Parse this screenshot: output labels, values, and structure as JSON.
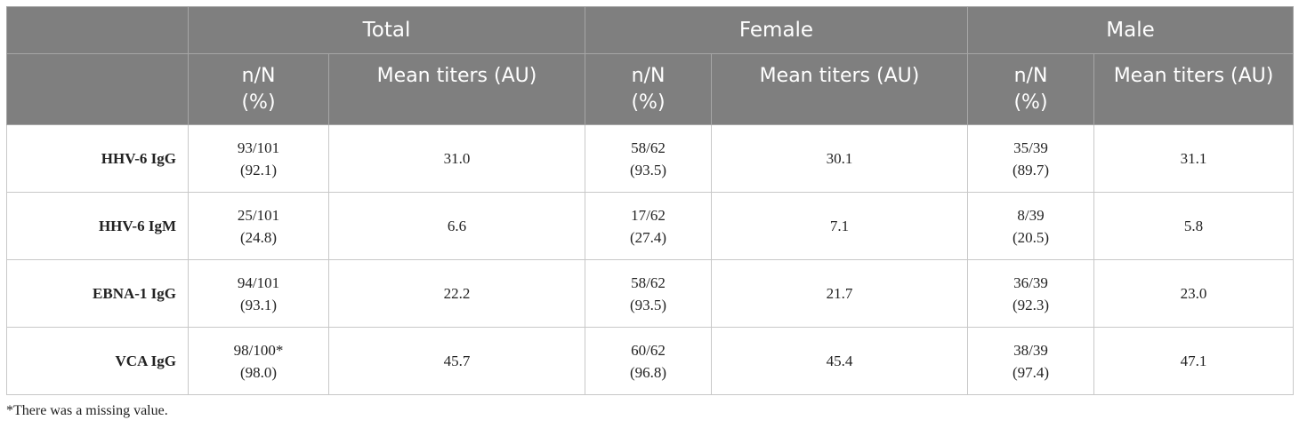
{
  "table": {
    "groups": [
      "Total",
      "Female",
      "Male"
    ],
    "subheaders": {
      "count_line1": "n/N",
      "count_line2": "(%)",
      "mean": "Mean titers (AU)"
    },
    "rows": [
      {
        "label": "HHV-6 IgG",
        "total": {
          "count": "93/101",
          "pct": "(92.1)",
          "mean": "31.0"
        },
        "female": {
          "count": "58/62",
          "pct": "(93.5)",
          "mean": "30.1"
        },
        "male": {
          "count": "35/39",
          "pct": "(89.7)",
          "mean": "31.1"
        }
      },
      {
        "label": "HHV-6 IgM",
        "total": {
          "count": "25/101",
          "pct": "(24.8)",
          "mean": "6.6"
        },
        "female": {
          "count": "17/62",
          "pct": "(27.4)",
          "mean": "7.1"
        },
        "male": {
          "count": "8/39",
          "pct": "(20.5)",
          "mean": "5.8"
        }
      },
      {
        "label": "EBNA-1 IgG",
        "total": {
          "count": "94/101",
          "pct": "(93.1)",
          "mean": "22.2"
        },
        "female": {
          "count": "58/62",
          "pct": "(93.5)",
          "mean": "21.7"
        },
        "male": {
          "count": "36/39",
          "pct": "(92.3)",
          "mean": "23.0"
        }
      },
      {
        "label": "VCA IgG",
        "total": {
          "count": "98/100*",
          "pct": "(98.0)",
          "mean": "45.7"
        },
        "female": {
          "count": "60/62",
          "pct": "(96.8)",
          "mean": "45.4"
        },
        "male": {
          "count": "38/39",
          "pct": "(97.4)",
          "mean": "47.1"
        }
      }
    ]
  },
  "footnote": "*There was a missing value.",
  "colors": {
    "header_bg": "#7f7f7f",
    "header_text": "#ffffff",
    "grid": "#c8c8c8"
  }
}
